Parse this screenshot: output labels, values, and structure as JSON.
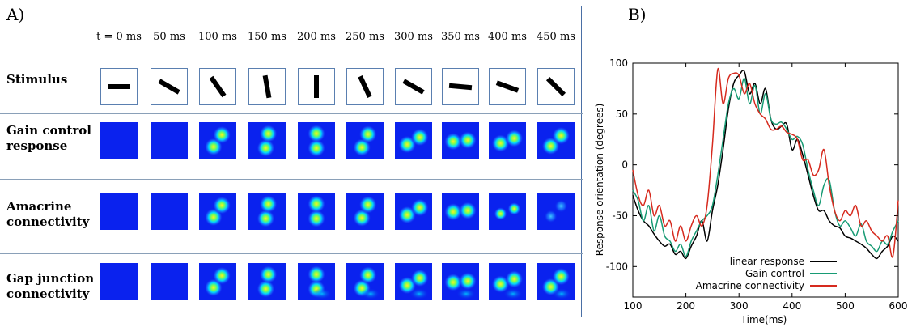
{
  "panel_a_label": "A)",
  "panel_b_label": "B)",
  "timepoints": [
    "t = 0 ms",
    "50 ms",
    "100 ms",
    "150 ms",
    "200 ms",
    "250 ms",
    "300 ms",
    "350 ms",
    "400 ms",
    "450 ms"
  ],
  "rows": {
    "stimulus": "Stimulus",
    "gain_line1": "Gain control",
    "gain_line2": "response",
    "amacrine_line1": "Amacrine",
    "amacrine_line2": "connectivity",
    "gap_line1": "Gap junction",
    "gap_line2": "connectivity"
  },
  "stimulus_orientations_deg": [
    0,
    30,
    55,
    80,
    90,
    65,
    30,
    5,
    20,
    45
  ],
  "colors": {
    "background_blue": "#0a22ee",
    "linear": "#000000",
    "gain": "#179b74",
    "amacrine": "#d62a1e"
  },
  "chart_data": {
    "type": "line",
    "xlabel": "Time(ms)",
    "ylabel": "Response orientation (degrees)",
    "xlim": [
      100,
      600
    ],
    "ylim": [
      -130,
      100
    ],
    "xticks": [
      100,
      200,
      300,
      400,
      500,
      600
    ],
    "yticks": [
      100,
      50,
      0,
      -50,
      -100
    ],
    "legend_position": "bottom-right",
    "series": [
      {
        "name": "linear response",
        "color": "#000000",
        "x": [
          100,
          110,
          120,
          130,
          140,
          150,
          160,
          170,
          180,
          190,
          200,
          210,
          220,
          230,
          240,
          250,
          260,
          270,
          280,
          290,
          300,
          310,
          320,
          330,
          340,
          350,
          360,
          370,
          380,
          390,
          400,
          410,
          420,
          430,
          440,
          450,
          460,
          470,
          480,
          490,
          500,
          510,
          520,
          530,
          540,
          550,
          560,
          570,
          580,
          590,
          600
        ],
        "y": [
          -30,
          -45,
          -55,
          -60,
          -68,
          -75,
          -80,
          -78,
          -88,
          -85,
          -92,
          -80,
          -70,
          -55,
          -75,
          -45,
          -20,
          15,
          55,
          80,
          88,
          92,
          70,
          80,
          60,
          75,
          45,
          35,
          38,
          40,
          15,
          25,
          10,
          -10,
          -30,
          -45,
          -45,
          -55,
          -60,
          -62,
          -70,
          -72,
          -75,
          -78,
          -82,
          -88,
          -92,
          -85,
          -80,
          -70,
          -75
        ]
      },
      {
        "name": "Gain control",
        "color": "#179b74",
        "x": [
          100,
          110,
          120,
          130,
          140,
          150,
          160,
          170,
          180,
          190,
          200,
          210,
          220,
          230,
          240,
          250,
          260,
          270,
          280,
          290,
          300,
          310,
          320,
          330,
          340,
          350,
          360,
          370,
          380,
          390,
          400,
          410,
          420,
          430,
          440,
          450,
          460,
          470,
          480,
          490,
          500,
          510,
          520,
          530,
          540,
          550,
          560,
          570,
          580,
          590,
          600
        ],
        "y": [
          -25,
          -35,
          -55,
          -40,
          -65,
          -50,
          -70,
          -75,
          -85,
          -78,
          -90,
          -75,
          -65,
          -55,
          -50,
          -40,
          -10,
          25,
          60,
          75,
          65,
          85,
          60,
          78,
          50,
          70,
          45,
          40,
          42,
          35,
          25,
          28,
          20,
          -5,
          -25,
          -40,
          -20,
          -15,
          -45,
          -60,
          -55,
          -62,
          -70,
          -58,
          -75,
          -80,
          -85,
          -75,
          -78,
          -65,
          -55
        ]
      },
      {
        "name": "Amacrine connectivity",
        "color": "#d62a1e",
        "x": [
          100,
          110,
          120,
          130,
          140,
          150,
          160,
          170,
          180,
          190,
          200,
          210,
          220,
          230,
          240,
          250,
          260,
          270,
          280,
          290,
          300,
          310,
          320,
          330,
          340,
          350,
          360,
          370,
          380,
          390,
          400,
          410,
          420,
          430,
          440,
          450,
          460,
          470,
          480,
          490,
          500,
          510,
          520,
          530,
          540,
          550,
          560,
          570,
          580,
          590,
          600
        ],
        "y": [
          -5,
          -30,
          -40,
          -25,
          -50,
          -40,
          -60,
          -55,
          -75,
          -60,
          -75,
          -60,
          -50,
          -60,
          -40,
          20,
          94,
          60,
          85,
          90,
          88,
          70,
          80,
          60,
          50,
          45,
          35,
          35,
          38,
          32,
          30,
          25,
          5,
          5,
          -10,
          -5,
          15,
          -20,
          -45,
          -55,
          -45,
          -50,
          -40,
          -60,
          -55,
          -65,
          -70,
          -75,
          -70,
          -90,
          -35
        ]
      }
    ]
  }
}
